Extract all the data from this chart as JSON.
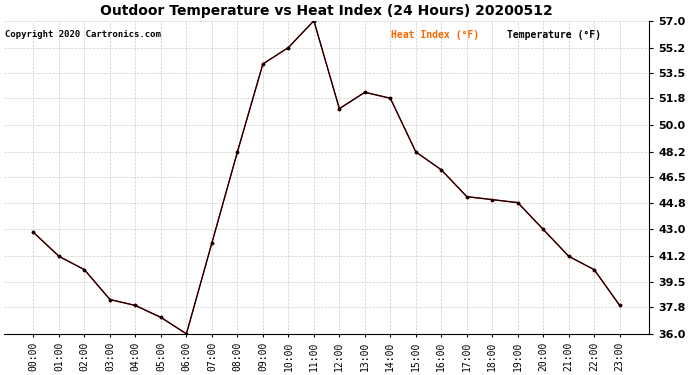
{
  "title": "Outdoor Temperature vs Heat Index (24 Hours) 20200512",
  "copyright": "Copyright 2020 Cartronics.com",
  "legend_heat": "Heat Index (°F)",
  "legend_temp": "Temperature (°F)",
  "hours": [
    "00:00",
    "01:00",
    "02:00",
    "03:00",
    "04:00",
    "05:00",
    "06:00",
    "07:00",
    "08:00",
    "09:00",
    "10:00",
    "11:00",
    "12:00",
    "13:00",
    "14:00",
    "15:00",
    "16:00",
    "17:00",
    "18:00",
    "19:00",
    "20:00",
    "21:00",
    "22:00",
    "23:00"
  ],
  "temperature": [
    42.8,
    41.2,
    40.3,
    38.3,
    37.9,
    37.1,
    36.0,
    42.1,
    48.2,
    54.1,
    55.2,
    57.0,
    51.1,
    52.2,
    51.8,
    48.2,
    47.0,
    45.2,
    45.0,
    44.8,
    43.0,
    41.2,
    40.3,
    37.9
  ],
  "heat_index": [
    42.8,
    41.2,
    40.3,
    38.3,
    37.9,
    37.1,
    36.0,
    42.1,
    48.2,
    54.1,
    55.2,
    57.0,
    51.1,
    52.2,
    51.8,
    48.2,
    47.0,
    45.2,
    45.0,
    44.8,
    43.0,
    41.2,
    40.3,
    37.9
  ],
  "temp_color": "#000000",
  "heat_color": "#cc0000",
  "heat_legend_color": "#ff6600",
  "temp_legend_color": "#000000",
  "bg_color": "#ffffff",
  "grid_color": "#cccccc",
  "ylim_min": 36.0,
  "ylim_max": 57.0,
  "yticks": [
    36.0,
    37.8,
    39.5,
    41.2,
    43.0,
    44.8,
    46.5,
    48.2,
    50.0,
    51.8,
    53.5,
    55.2,
    57.0
  ],
  "title_fontsize": 10,
  "copyright_fontsize": 6.5,
  "tick_fontsize": 7,
  "ytick_fontsize": 8
}
